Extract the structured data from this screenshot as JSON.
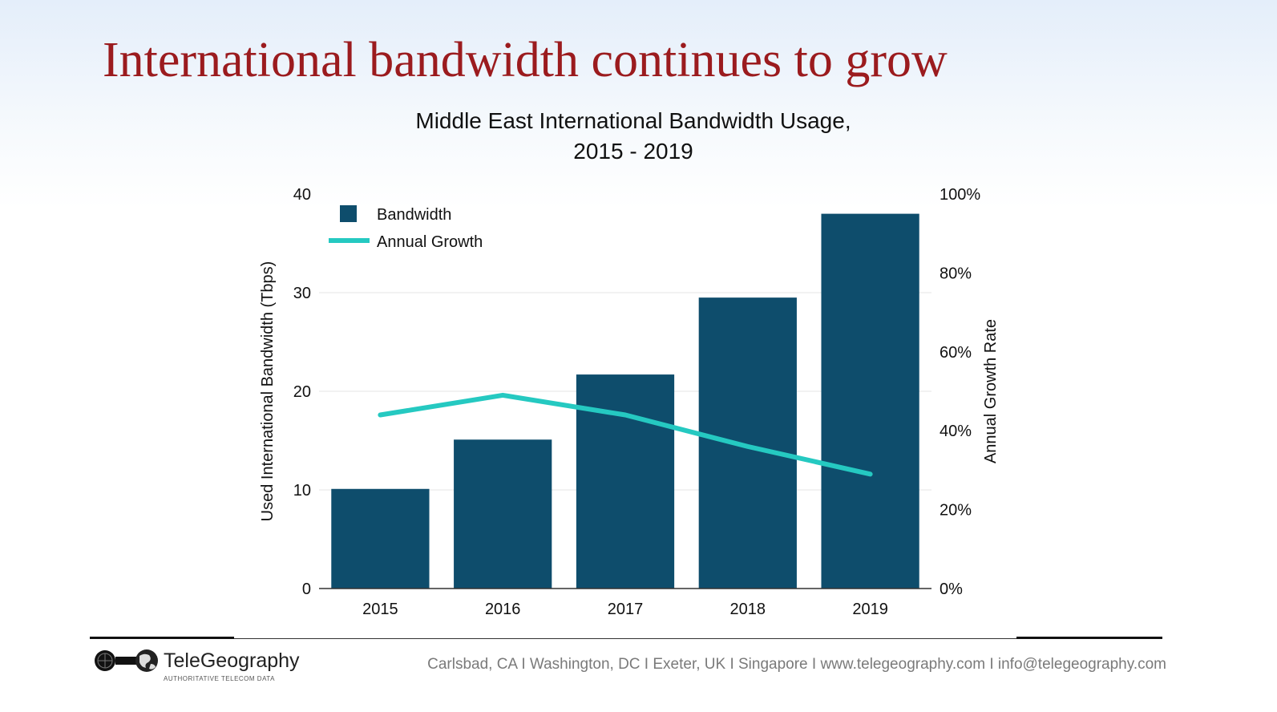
{
  "slide": {
    "title": "International bandwidth continues to grow"
  },
  "chart_data": {
    "type": "bar",
    "title_line1": "Middle East International Bandwidth Usage,",
    "title_line2": "2015 - 2019",
    "categories": [
      "2015",
      "2016",
      "2017",
      "2018",
      "2019"
    ],
    "series": [
      {
        "name": "Bandwidth",
        "kind": "bar",
        "axis": "left",
        "color": "#0e4d6c",
        "values": [
          10.1,
          15.1,
          21.7,
          29.5,
          38.0
        ]
      },
      {
        "name": "Annual Growth",
        "kind": "line",
        "axis": "right",
        "color": "#25c9c1",
        "values": [
          44,
          49,
          44,
          36,
          29
        ]
      }
    ],
    "ylabel": "Used International Bandwidth (Tbps)",
    "ylim": [
      0,
      40
    ],
    "yticks": [
      "0",
      "10",
      "20",
      "30",
      "40"
    ],
    "y2label": "Annual Growth Rate",
    "y2lim": [
      0,
      100
    ],
    "y2ticks": [
      "0%",
      "20%",
      "40%",
      "60%",
      "80%",
      "100%"
    ],
    "grid": true,
    "legend_position": "top-left"
  },
  "footer": {
    "logo_name": "TeleGeography",
    "logo_tagline": "AUTHORITATIVE TELECOM DATA",
    "contact": "Carlsbad, CA I Washington, DC I Exeter, UK I Singapore I www.telegeography.com I info@telegeography.com"
  },
  "icons": {
    "logo": "telegeography-logo-icon"
  }
}
